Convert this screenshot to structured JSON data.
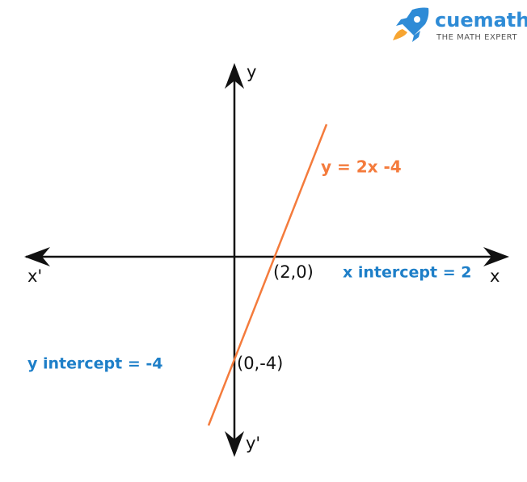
{
  "logo": {
    "name": "cuemath",
    "tagline": "THE MATH EXPERT"
  },
  "axes": {
    "x_positive": "x",
    "x_negative": "x'",
    "y_positive": "y",
    "y_negative": "y'"
  },
  "line": {
    "equation": "y = 2x -4"
  },
  "points": {
    "x_intercept_point": "(2,0)",
    "y_intercept_point": "(0,-4)"
  },
  "annotations": {
    "x_intercept": "x intercept = 2",
    "y_intercept": "y intercept = -4"
  }
}
